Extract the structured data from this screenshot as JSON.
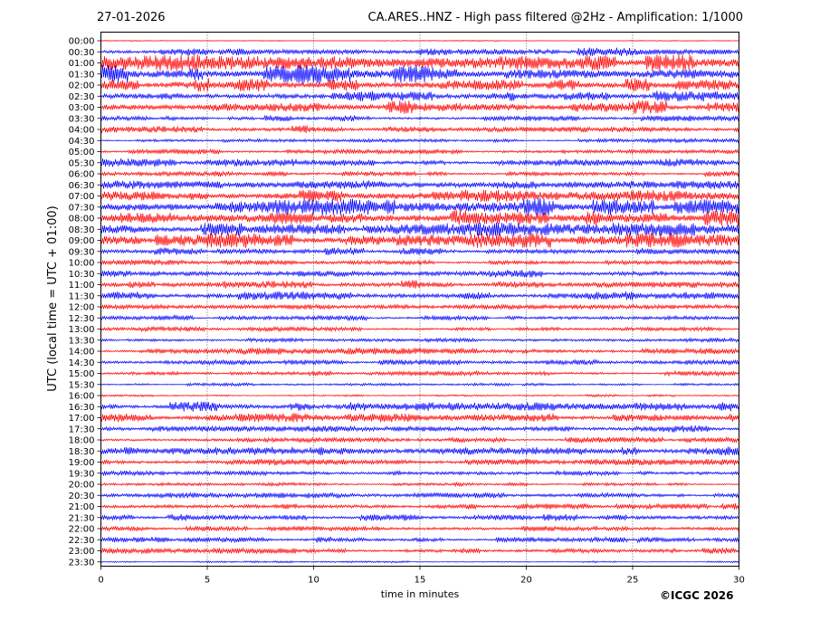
{
  "header": {
    "date": "27-01-2026",
    "title": "CA.ARES..HNZ - High pass filtered @2Hz - Amplification: 1/1000"
  },
  "footer": {
    "credit": "©ICGC 2026"
  },
  "chart_data": {
    "type": "line",
    "title": "CA.ARES..HNZ - High pass filtered @2Hz - Amplification: 1/1000",
    "xlabel": "time in minutes",
    "ylabel": "UTC (local time = UTC + 01:00)",
    "xlim": [
      0,
      30
    ],
    "x_ticks": [
      0,
      5,
      10,
      15,
      20,
      25,
      30
    ],
    "x_tick_labels": [
      "0",
      "5",
      "10",
      "15",
      "20",
      "25",
      "30"
    ],
    "grid": "vertical dotted lines at 5-minute intervals",
    "row_labels": [
      "00:00",
      "00:30",
      "01:00",
      "01:30",
      "02:00",
      "02:30",
      "03:00",
      "03:30",
      "04:00",
      "04:30",
      "05:00",
      "05:30",
      "06:00",
      "06:30",
      "07:00",
      "07:30",
      "08:00",
      "08:30",
      "09:00",
      "09:30",
      "10:00",
      "10:30",
      "11:00",
      "11:30",
      "12:00",
      "12:30",
      "13:00",
      "13:30",
      "14:00",
      "14:30",
      "15:00",
      "15:30",
      "16:00",
      "16:30",
      "17:00",
      "17:30",
      "18:00",
      "18:30",
      "19:00",
      "19:30",
      "20:00",
      "20:30",
      "21:00",
      "21:30",
      "22:00",
      "22:30",
      "23:00",
      "23:30"
    ],
    "trace_colors": [
      "#ff0000",
      "#0000ff"
    ],
    "trace_color_order": "alternating, starting with red at 00:00",
    "row_relative_amplitude": [
      0.06,
      0.5,
      0.85,
      0.95,
      0.75,
      0.65,
      0.75,
      0.3,
      0.4,
      0.2,
      0.25,
      0.45,
      0.3,
      0.45,
      0.65,
      0.95,
      0.85,
      0.7,
      0.8,
      0.4,
      0.3,
      0.4,
      0.45,
      0.45,
      0.25,
      0.25,
      0.25,
      0.2,
      0.35,
      0.3,
      0.25,
      0.15,
      0.12,
      0.5,
      0.55,
      0.35,
      0.3,
      0.45,
      0.35,
      0.25,
      0.2,
      0.3,
      0.3,
      0.35,
      0.3,
      0.3,
      0.3,
      0.1
    ]
  }
}
